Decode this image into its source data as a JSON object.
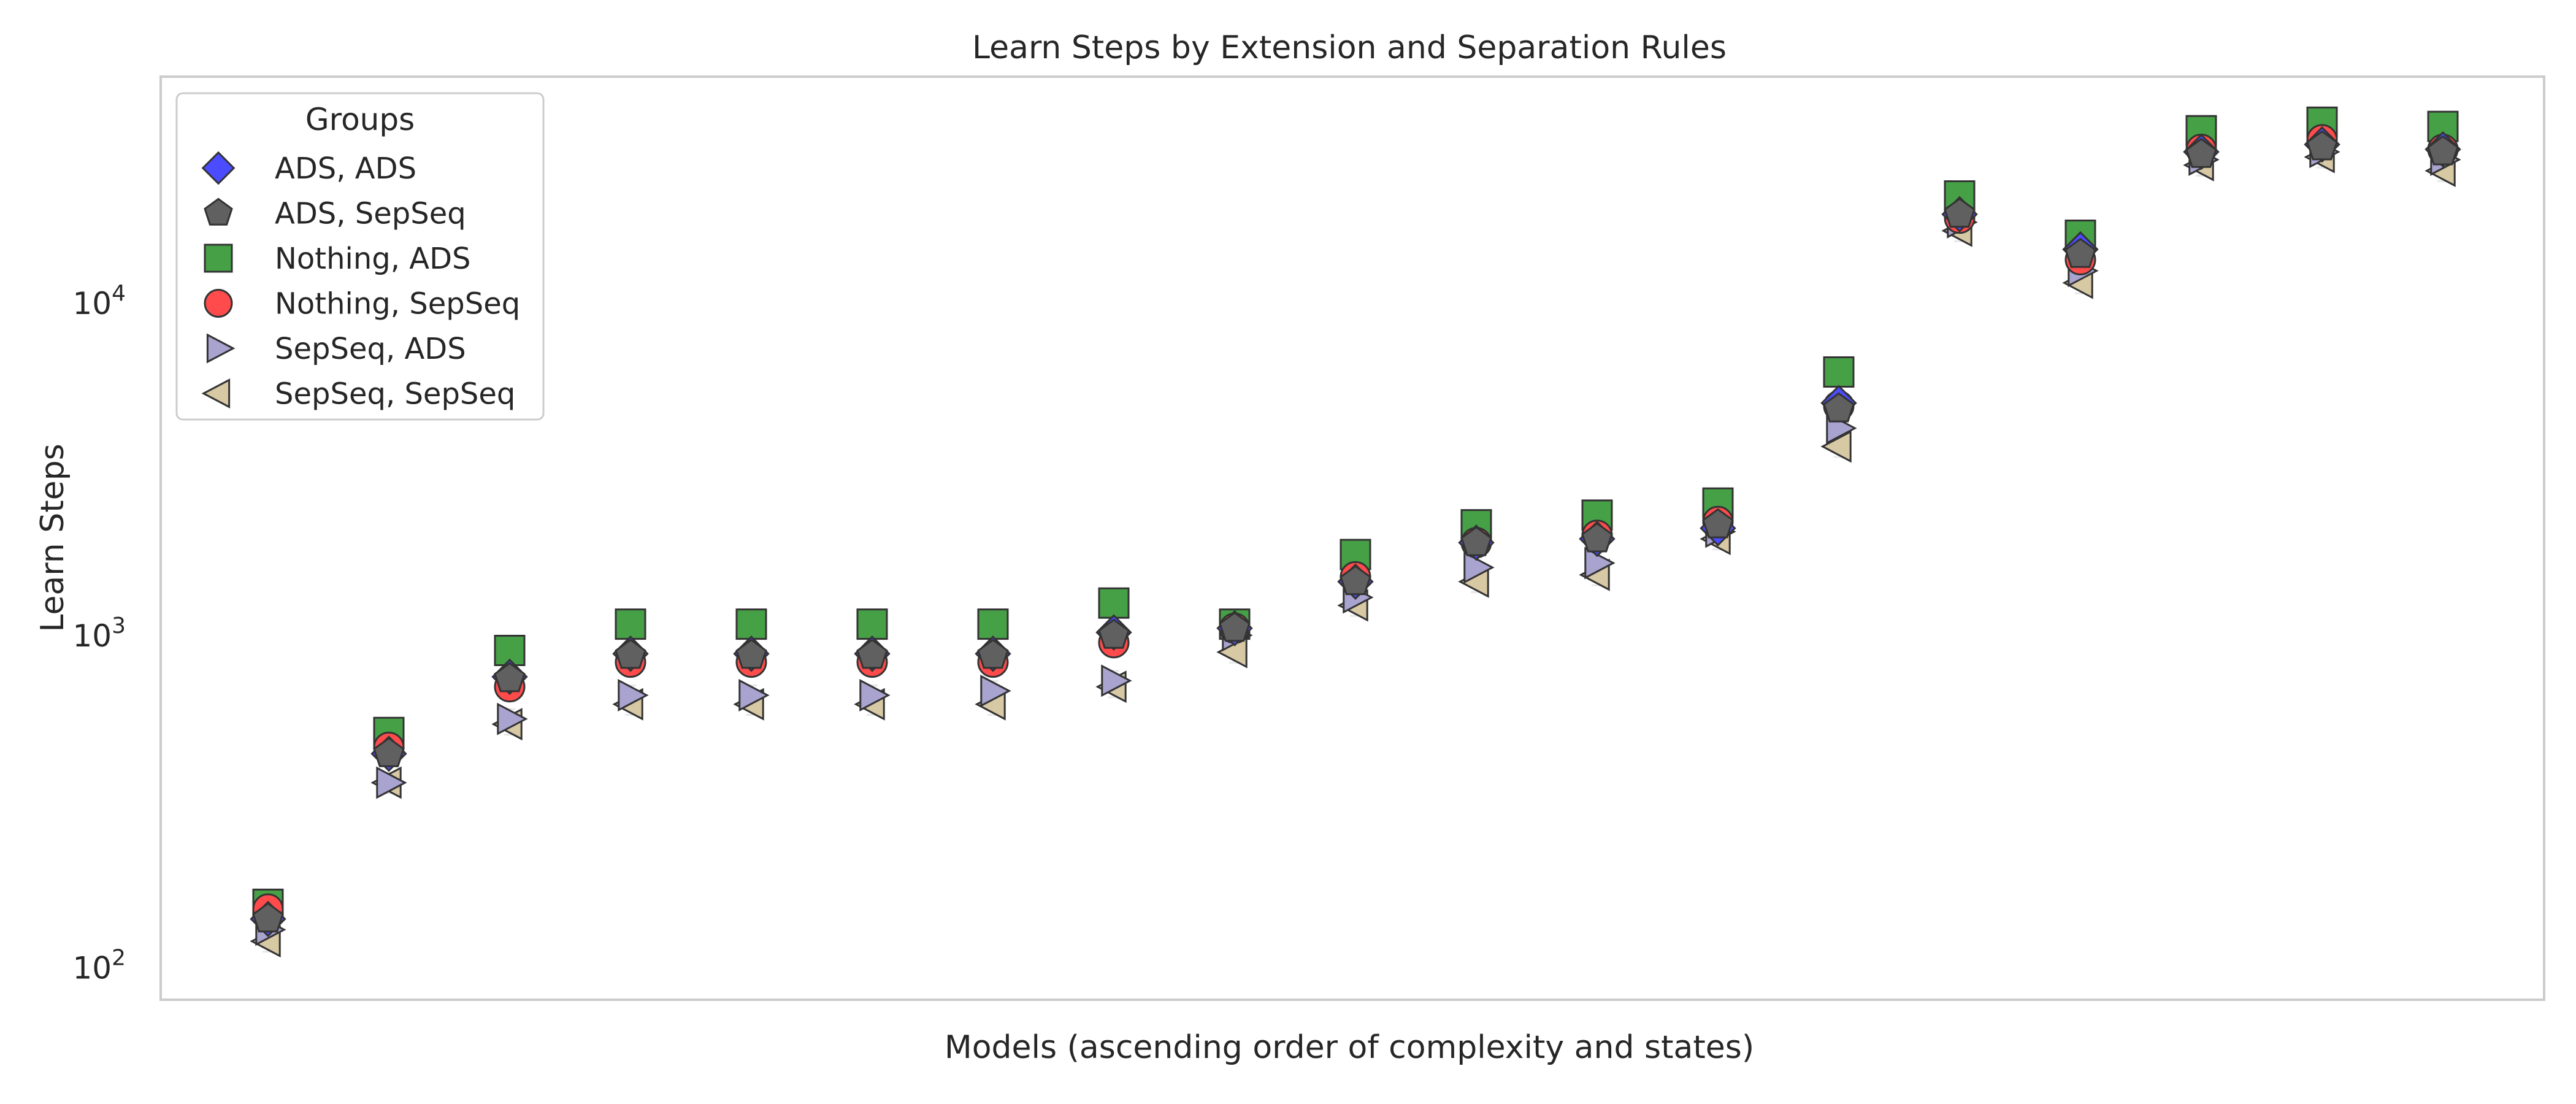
{
  "chart_data": {
    "type": "scatter",
    "title": "Learn Steps by Extension and Separation Rules",
    "xlabel": "Models (ascending order of complexity and states)",
    "ylabel": "Learn Steps",
    "yscale": "log",
    "ylim": [
      80,
      48000
    ],
    "x": [
      1,
      2,
      3,
      4,
      5,
      6,
      7,
      8,
      9,
      10,
      11,
      12,
      13,
      14,
      15,
      16,
      17,
      18,
      19
    ],
    "yticks": [
      {
        "value": 100,
        "base": "10",
        "exp": "2"
      },
      {
        "value": 1000,
        "base": "10",
        "exp": "3"
      },
      {
        "value": 10000,
        "base": "10",
        "exp": "4"
      }
    ],
    "grid": false,
    "legend": {
      "title": "Groups",
      "position": "upper-left"
    },
    "series": [
      {
        "name": "ADS, ADS",
        "marker": "diamond",
        "color": "#4b4bff",
        "values": [
          140,
          440,
          750,
          880,
          880,
          880,
          880,
          1020,
          1050,
          1450,
          1900,
          1950,
          2100,
          5000,
          18500,
          14500,
          28500,
          30000,
          29000
        ]
      },
      {
        "name": "ADS, SepSeq",
        "marker": "pentagon",
        "color": "#606060",
        "values": [
          140,
          440,
          740,
          870,
          870,
          870,
          870,
          1000,
          1050,
          1450,
          1900,
          1950,
          2150,
          4800,
          18500,
          14000,
          28000,
          29500,
          28500
        ]
      },
      {
        "name": "Nothing, ADS",
        "marker": "square",
        "color": "#46a046",
        "values": [
          155,
          510,
          900,
          1080,
          1080,
          1080,
          1080,
          1250,
          1080,
          1750,
          2150,
          2300,
          2500,
          6200,
          21000,
          16000,
          33000,
          35000,
          34000
        ]
      },
      {
        "name": "Nothing, SepSeq",
        "marker": "circle",
        "color": "#ff4b4b",
        "values": [
          150,
          460,
          700,
          830,
          830,
          830,
          830,
          950,
          1050,
          1500,
          1900,
          2000,
          2200,
          4900,
          18000,
          13500,
          29000,
          31000,
          29000
        ]
      },
      {
        "name": "SepSeq, ADS",
        "marker": "triangle-right",
        "color": "#a9a3d0",
        "values": [
          130,
          360,
          560,
          660,
          660,
          660,
          680,
          730,
          1000,
          1300,
          1600,
          1650,
          2050,
          4200,
          17500,
          12500,
          27000,
          28500,
          27000
        ]
      },
      {
        "name": "SepSeq, SepSeq",
        "marker": "triangle-left",
        "color": "#d8c9a5",
        "values": [
          120,
          360,
          540,
          620,
          620,
          620,
          620,
          700,
          890,
          1230,
          1450,
          1520,
          1950,
          3700,
          16500,
          11500,
          26000,
          27500,
          25000
        ]
      }
    ]
  }
}
